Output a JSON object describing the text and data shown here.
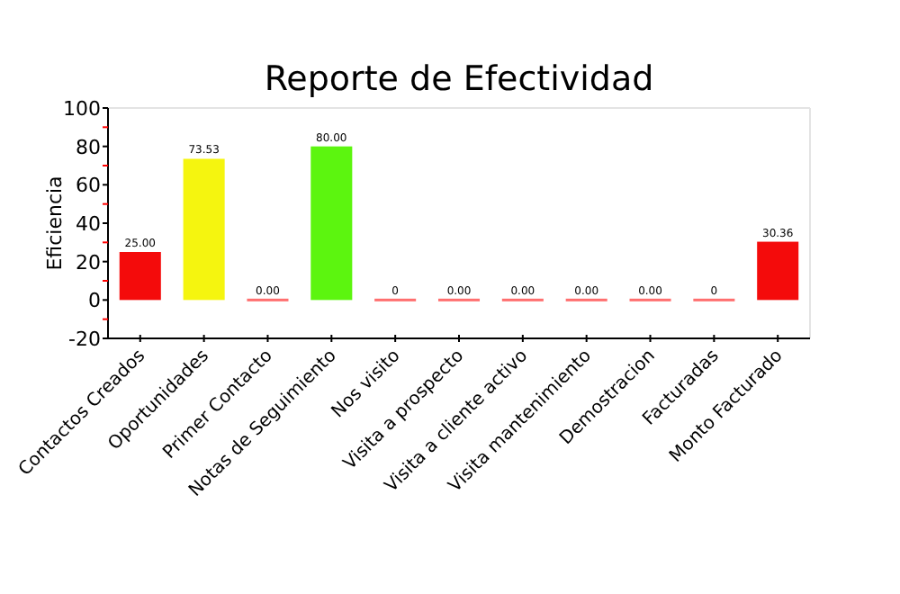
{
  "chart_data": {
    "type": "bar",
    "title": "Reporte de Efectividad",
    "ylabel": "Eficiencia",
    "categories": [
      "Contactos Creados",
      "Oportunidades",
      "Primer Contacto",
      "Notas de Seguimiento",
      "Nos visito",
      "Visita a prospecto",
      "Visita a cliente activo",
      "Visita mantenimiento",
      "Demostracion",
      "Facturadas",
      "Monto Facturado"
    ],
    "values": [
      25,
      73.53,
      0,
      80,
      0,
      0,
      0,
      0,
      0,
      0,
      30.36
    ],
    "value_labels": [
      "25.00",
      "73.53",
      "0.00",
      "80.00",
      "0",
      "0.00",
      "0.00",
      "0.00",
      "0.00",
      "0",
      "30.36"
    ],
    "colors": [
      "#f40b0b",
      "#f5f50f",
      "#ff6f6f",
      "#5cf50f",
      "#ff6f6f",
      "#ff6f6f",
      "#ff6f6f",
      "#ff6f6f",
      "#ff6f6f",
      "#ff6f6f",
      "#f40b0b"
    ],
    "ylim": [
      -20,
      100
    ],
    "yticks": [
      -20,
      {
        "value": -10,
        "label": null
      },
      0,
      {
        "value": 10,
        "label": null
      },
      20,
      {
        "value": 30,
        "label": null
      },
      40,
      {
        "value": 50,
        "label": null
      },
      60,
      {
        "value": 70,
        "label": null
      },
      80,
      {
        "value": 90,
        "label": null
      },
      100
    ],
    "grid": false
  }
}
